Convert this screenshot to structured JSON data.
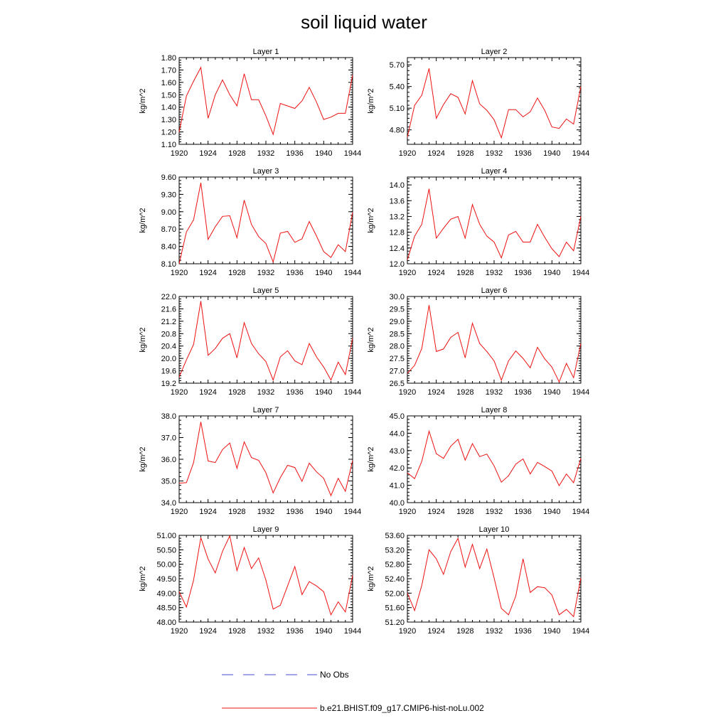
{
  "title": "soil liquid water",
  "colors": {
    "series": "#ee1111",
    "obs": "#4a4ad0",
    "axis": "#000000"
  },
  "legend": [
    {
      "label": "No Obs",
      "style": "dashed",
      "color": "#4a4ad0"
    },
    {
      "label": "b.e21.BHIST.f09_g17.CMIP6-hist-noLu.002",
      "style": "solid",
      "color": "#ee1111"
    }
  ],
  "chart_data": [
    {
      "type": "line",
      "title": "Layer 1",
      "ylabel": "kg/m^2",
      "xlim": [
        1920,
        1944
      ],
      "xticks": [
        "1920",
        "1924",
        "1928",
        "1932",
        "1936",
        "1940",
        "1944"
      ],
      "ylim": [
        1.1,
        1.8
      ],
      "yticks": [
        "1.10",
        "1.20",
        "1.30",
        "1.40",
        "1.50",
        "1.60",
        "1.70",
        "1.80"
      ],
      "series": [
        {
          "name": "b.e21.BHIST.f09_g17.CMIP6-hist-noLu.002",
          "x": [
            1920,
            1921,
            1922,
            1923,
            1924,
            1925,
            1926,
            1927,
            1928,
            1929,
            1930,
            1931,
            1932,
            1933,
            1934,
            1935,
            1936,
            1937,
            1938,
            1939,
            1940,
            1941,
            1942,
            1943,
            1944
          ],
          "values": [
            1.2,
            1.49,
            1.61,
            1.72,
            1.31,
            1.5,
            1.62,
            1.5,
            1.41,
            1.67,
            1.46,
            1.46,
            1.33,
            1.18,
            1.43,
            1.41,
            1.39,
            1.45,
            1.56,
            1.44,
            1.3,
            1.32,
            1.35,
            1.35,
            1.66
          ]
        }
      ]
    },
    {
      "type": "line",
      "title": "Layer 2",
      "ylabel": "kg/m^2",
      "xlim": [
        1920,
        1944
      ],
      "xticks": [
        "1920",
        "1924",
        "1928",
        "1932",
        "1936",
        "1940",
        "1944"
      ],
      "ylim": [
        4.6,
        5.8
      ],
      "yticks": [
        "4.80",
        "5.10",
        "5.40",
        "5.70"
      ],
      "series": [
        {
          "name": "b.e21.BHIST.f09_g17.CMIP6-hist-noLu.002",
          "x": [
            1920,
            1921,
            1922,
            1923,
            1924,
            1925,
            1926,
            1927,
            1928,
            1929,
            1930,
            1931,
            1932,
            1933,
            1934,
            1935,
            1936,
            1937,
            1938,
            1939,
            1940,
            1941,
            1942,
            1943,
            1944
          ],
          "values": [
            4.7,
            5.14,
            5.28,
            5.65,
            4.96,
            5.15,
            5.3,
            5.25,
            5.02,
            5.48,
            5.16,
            5.07,
            4.94,
            4.69,
            5.08,
            5.08,
            4.98,
            5.05,
            5.24,
            5.07,
            4.84,
            4.82,
            4.95,
            4.88,
            5.4
          ]
        }
      ]
    },
    {
      "type": "line",
      "title": "Layer 3",
      "ylabel": "kg/m^2",
      "xlim": [
        1920,
        1944
      ],
      "xticks": [
        "1920",
        "1924",
        "1928",
        "1932",
        "1936",
        "1940",
        "1944"
      ],
      "ylim": [
        8.1,
        9.6
      ],
      "yticks": [
        "8.10",
        "8.40",
        "8.70",
        "9.00",
        "9.30",
        "9.60"
      ],
      "series": [
        {
          "name": "b.e21.BHIST.f09_g17.CMIP6-hist-noLu.002",
          "x": [
            1920,
            1921,
            1922,
            1923,
            1924,
            1925,
            1926,
            1927,
            1928,
            1929,
            1930,
            1931,
            1932,
            1933,
            1934,
            1935,
            1936,
            1937,
            1938,
            1939,
            1940,
            1941,
            1942,
            1943,
            1944
          ],
          "values": [
            8.1,
            8.65,
            8.86,
            9.5,
            8.52,
            8.74,
            8.92,
            8.93,
            8.55,
            9.2,
            8.78,
            8.57,
            8.45,
            8.13,
            8.63,
            8.66,
            8.47,
            8.53,
            8.83,
            8.58,
            8.31,
            8.21,
            8.43,
            8.31,
            8.99
          ]
        }
      ]
    },
    {
      "type": "line",
      "title": "Layer 4",
      "ylabel": "kg/m^2",
      "xlim": [
        1920,
        1944
      ],
      "xticks": [
        "1920",
        "1924",
        "1928",
        "1932",
        "1936",
        "1940",
        "1944"
      ],
      "ylim": [
        12.0,
        14.2
      ],
      "yticks": [
        "12.0",
        "12.4",
        "12.8",
        "13.2",
        "13.6",
        "14.0"
      ],
      "series": [
        {
          "name": "b.e21.BHIST.f09_g17.CMIP6-hist-noLu.002",
          "x": [
            1920,
            1921,
            1922,
            1923,
            1924,
            1925,
            1926,
            1927,
            1928,
            1929,
            1930,
            1931,
            1932,
            1933,
            1934,
            1935,
            1936,
            1937,
            1938,
            1939,
            1940,
            1941,
            1942,
            1943,
            1944
          ],
          "values": [
            12.1,
            12.7,
            13.0,
            13.9,
            12.65,
            12.9,
            13.13,
            13.2,
            12.65,
            13.5,
            13.0,
            12.7,
            12.55,
            12.15,
            12.73,
            12.82,
            12.55,
            12.55,
            13.0,
            12.67,
            12.38,
            12.18,
            12.55,
            12.33,
            13.2
          ]
        }
      ]
    },
    {
      "type": "line",
      "title": "Layer 5",
      "ylabel": "kg/m^2",
      "xlim": [
        1920,
        1944
      ],
      "xticks": [
        "1920",
        "1924",
        "1928",
        "1932",
        "1936",
        "1940",
        "1944"
      ],
      "ylim": [
        19.2,
        22.0
      ],
      "yticks": [
        "19.2",
        "19.6",
        "20.0",
        "20.4",
        "20.8",
        "21.2",
        "21.6",
        "22.0"
      ],
      "series": [
        {
          "name": "b.e21.BHIST.f09_g17.CMIP6-hist-noLu.002",
          "x": [
            1920,
            1921,
            1922,
            1923,
            1924,
            1925,
            1926,
            1927,
            1928,
            1929,
            1930,
            1931,
            1932,
            1933,
            1934,
            1935,
            1936,
            1937,
            1938,
            1939,
            1940,
            1941,
            1942,
            1943,
            1944
          ],
          "values": [
            19.4,
            19.95,
            20.45,
            21.85,
            20.1,
            20.32,
            20.65,
            20.8,
            20.02,
            21.15,
            20.48,
            20.15,
            19.9,
            19.3,
            20.05,
            20.25,
            19.92,
            19.8,
            20.48,
            20.05,
            19.72,
            19.3,
            19.88,
            19.48,
            20.65
          ]
        }
      ]
    },
    {
      "type": "line",
      "title": "Layer 6",
      "ylabel": "kg/m^2",
      "xlim": [
        1920,
        1944
      ],
      "xticks": [
        "1920",
        "1924",
        "1928",
        "1932",
        "1936",
        "1940",
        "1944"
      ],
      "ylim": [
        26.5,
        30.0
      ],
      "yticks": [
        "26.5",
        "27.0",
        "27.5",
        "28.0",
        "28.5",
        "29.0",
        "29.5",
        "30.0"
      ],
      "series": [
        {
          "name": "b.e21.BHIST.f09_g17.CMIP6-hist-noLu.002",
          "x": [
            1920,
            1921,
            1922,
            1923,
            1924,
            1925,
            1926,
            1927,
            1928,
            1929,
            1930,
            1931,
            1932,
            1933,
            1934,
            1935,
            1936,
            1937,
            1938,
            1939,
            1940,
            1941,
            1942,
            1943,
            1944
          ],
          "values": [
            26.9,
            27.22,
            27.9,
            29.65,
            27.78,
            27.88,
            28.35,
            28.55,
            27.52,
            28.92,
            28.1,
            27.78,
            27.4,
            26.62,
            27.4,
            27.8,
            27.5,
            27.12,
            27.95,
            27.48,
            27.15,
            26.55,
            27.3,
            26.72,
            28.1
          ]
        }
      ]
    },
    {
      "type": "line",
      "title": "Layer 7",
      "ylabel": "kg/m^2",
      "xlim": [
        1920,
        1944
      ],
      "xticks": [
        "1920",
        "1924",
        "1928",
        "1932",
        "1936",
        "1940",
        "1944"
      ],
      "ylim": [
        34.0,
        38.0
      ],
      "yticks": [
        "34.0",
        "35.0",
        "36.0",
        "37.0",
        "38.0"
      ],
      "series": [
        {
          "name": "b.e21.BHIST.f09_g17.CMIP6-hist-noLu.002",
          "x": [
            1920,
            1921,
            1922,
            1923,
            1924,
            1925,
            1926,
            1927,
            1928,
            1929,
            1930,
            1931,
            1932,
            1933,
            1934,
            1935,
            1936,
            1937,
            1938,
            1939,
            1940,
            1941,
            1942,
            1943,
            1944
          ],
          "values": [
            34.9,
            34.92,
            35.85,
            37.72,
            35.92,
            35.85,
            36.45,
            36.75,
            35.58,
            36.8,
            36.08,
            35.95,
            35.38,
            34.45,
            35.15,
            35.72,
            35.62,
            34.98,
            35.82,
            35.42,
            35.12,
            34.32,
            35.12,
            34.52,
            35.95
          ]
        }
      ]
    },
    {
      "type": "line",
      "title": "Layer 8",
      "ylabel": "kg/m^2",
      "xlim": [
        1920,
        1944
      ],
      "xticks": [
        "1920",
        "1924",
        "1928",
        "1932",
        "1936",
        "1940",
        "1944"
      ],
      "ylim": [
        40.0,
        45.0
      ],
      "yticks": [
        "40.0",
        "41.0",
        "42.0",
        "43.0",
        "44.0",
        "45.0"
      ],
      "series": [
        {
          "name": "b.e21.BHIST.f09_g17.CMIP6-hist-noLu.002",
          "x": [
            1920,
            1921,
            1922,
            1923,
            1924,
            1925,
            1926,
            1927,
            1928,
            1929,
            1930,
            1931,
            1932,
            1933,
            1934,
            1935,
            1936,
            1937,
            1938,
            1939,
            1940,
            1941,
            1942,
            1943,
            1944
          ],
          "values": [
            41.72,
            41.38,
            42.38,
            44.12,
            42.82,
            42.55,
            43.25,
            43.65,
            42.45,
            43.4,
            42.65,
            42.8,
            42.12,
            41.18,
            41.55,
            42.22,
            42.52,
            41.65,
            42.32,
            42.08,
            41.82,
            40.98,
            41.65,
            41.15,
            42.55
          ]
        }
      ]
    },
    {
      "type": "line",
      "title": "Layer 9",
      "ylabel": "kg/m^2",
      "xlim": [
        1920,
        1944
      ],
      "xticks": [
        "1920",
        "1924",
        "1928",
        "1932",
        "1936",
        "1940",
        "1944"
      ],
      "ylim": [
        48.0,
        51.0
      ],
      "yticks": [
        "48.00",
        "48.50",
        "49.00",
        "49.50",
        "50.00",
        "50.50",
        "51.00"
      ],
      "series": [
        {
          "name": "b.e21.BHIST.f09_g17.CMIP6-hist-noLu.002",
          "x": [
            1920,
            1921,
            1922,
            1923,
            1924,
            1925,
            1926,
            1927,
            1928,
            1929,
            1930,
            1931,
            1932,
            1933,
            1934,
            1935,
            1936,
            1937,
            1938,
            1939,
            1940,
            1941,
            1942,
            1943,
            1944
          ],
          "values": [
            49.05,
            48.52,
            49.45,
            50.92,
            50.18,
            49.7,
            50.45,
            50.98,
            49.78,
            50.58,
            49.85,
            50.22,
            49.45,
            48.45,
            48.58,
            49.25,
            49.92,
            48.95,
            49.4,
            49.25,
            49.05,
            48.25,
            48.7,
            48.35,
            49.62
          ]
        }
      ]
    },
    {
      "type": "line",
      "title": "Layer 10",
      "ylabel": "kg/m^2",
      "xlim": [
        1920,
        1944
      ],
      "xticks": [
        "1920",
        "1924",
        "1928",
        "1932",
        "1936",
        "1940",
        "1944"
      ],
      "ylim": [
        51.2,
        53.6
      ],
      "yticks": [
        "51.20",
        "51.60",
        "52.00",
        "52.40",
        "52.80",
        "53.20",
        "53.60"
      ],
      "series": [
        {
          "name": "b.e21.BHIST.f09_g17.CMIP6-hist-noLu.002",
          "x": [
            1920,
            1921,
            1922,
            1923,
            1924,
            1925,
            1926,
            1927,
            1928,
            1929,
            1930,
            1931,
            1932,
            1933,
            1934,
            1935,
            1936,
            1937,
            1938,
            1939,
            1940,
            1941,
            1942,
            1943,
            1944
          ],
          "values": [
            52.0,
            51.52,
            52.22,
            53.2,
            52.95,
            52.52,
            53.15,
            53.52,
            52.72,
            53.35,
            52.68,
            53.22,
            52.42,
            51.58,
            51.4,
            51.92,
            52.95,
            52.02,
            52.18,
            52.15,
            51.95,
            51.4,
            51.55,
            51.35,
            52.42
          ]
        }
      ]
    }
  ]
}
